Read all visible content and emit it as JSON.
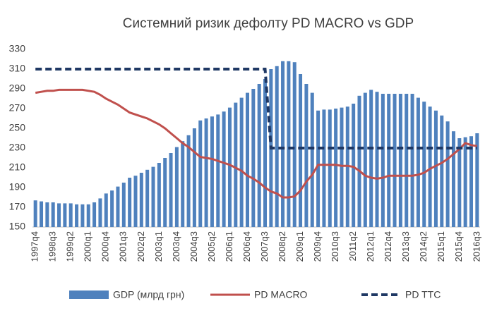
{
  "chart_data": {
    "type": "bar",
    "title": "Системний ризик дефолту PD MACRO vs GDP",
    "categories": [
      "1997q4",
      null,
      null,
      "1998q3",
      null,
      null,
      "1999q2",
      null,
      null,
      "2000q1",
      null,
      null,
      "2000q4",
      null,
      null,
      "2001q3",
      null,
      null,
      "2002q2",
      null,
      null,
      "2003q1",
      null,
      null,
      "2003q4",
      null,
      null,
      "2004q3",
      null,
      null,
      "2005q2",
      null,
      null,
      "2006q1",
      null,
      null,
      "2006q4",
      null,
      null,
      "2007q3",
      null,
      null,
      "2008q2",
      null,
      null,
      "2009q1",
      null,
      null,
      "2009q4",
      null,
      null,
      "2010q3",
      null,
      null,
      "2011q2",
      null,
      null,
      "2012q1",
      null,
      null,
      "2012q4",
      null,
      null,
      "2013q3",
      null,
      null,
      "2014q2",
      null,
      null,
      "2015q1",
      null,
      null,
      "2015q4",
      null,
      null,
      "2016q3"
    ],
    "series": [
      {
        "name": "GDP (млрд грн)",
        "type": "bar",
        "color": "#4f81bd",
        "values": [
          177,
          176,
          175,
          175,
          174,
          174,
          174,
          173,
          173,
          173,
          175,
          179,
          184,
          187,
          191,
          195,
          200,
          202,
          205,
          208,
          211,
          215,
          220,
          225,
          231,
          237,
          243,
          250,
          258,
          260,
          262,
          264,
          267,
          271,
          276,
          281,
          286,
          290,
          295,
          300,
          310,
          313,
          318,
          318,
          317,
          305,
          295,
          286,
          268,
          269,
          269,
          270,
          271,
          272,
          275,
          283,
          286,
          289,
          287,
          285,
          285,
          285,
          285,
          285,
          285,
          281,
          277,
          272,
          268,
          263,
          257,
          247,
          240,
          241,
          242,
          245
        ]
      },
      {
        "name": "PD MACRO",
        "type": "line",
        "color": "#c0504d",
        "values": [
          286,
          287,
          288,
          288,
          289,
          289,
          289,
          289,
          289,
          288,
          287,
          284,
          280,
          277,
          274,
          270,
          266,
          264,
          262,
          260,
          257,
          254,
          250,
          245,
          240,
          235,
          231,
          226,
          221,
          220,
          219,
          217,
          215,
          213,
          210,
          207,
          202,
          199,
          195,
          190,
          186,
          184,
          180,
          180,
          181,
          187,
          196,
          203,
          213,
          213,
          213,
          213,
          212,
          212,
          211,
          207,
          202,
          200,
          199,
          200,
          202,
          202,
          202,
          202,
          202,
          203,
          205,
          209,
          212,
          215,
          219,
          224,
          229,
          235,
          233,
          232
        ]
      },
      {
        "name": "PD TTC",
        "type": "dashed-line",
        "color": "#1f3864",
        "values": [
          310,
          310,
          310,
          310,
          310,
          310,
          310,
          310,
          310,
          310,
          310,
          310,
          310,
          310,
          310,
          310,
          310,
          310,
          310,
          310,
          310,
          310,
          310,
          310,
          310,
          310,
          310,
          310,
          310,
          310,
          310,
          310,
          310,
          310,
          310,
          310,
          310,
          310,
          310,
          310,
          230,
          230,
          230,
          230,
          230,
          230,
          230,
          230,
          230,
          230,
          230,
          230,
          230,
          230,
          230,
          230,
          230,
          230,
          230,
          230,
          230,
          230,
          230,
          230,
          230,
          230,
          230,
          230,
          230,
          230,
          230,
          230,
          230,
          230,
          230,
          230
        ]
      }
    ],
    "ylim": [
      150,
      330
    ],
    "yticks": [
      150,
      170,
      190,
      210,
      230,
      250,
      270,
      290,
      310,
      330
    ],
    "grid": false,
    "legend": "bottom"
  }
}
